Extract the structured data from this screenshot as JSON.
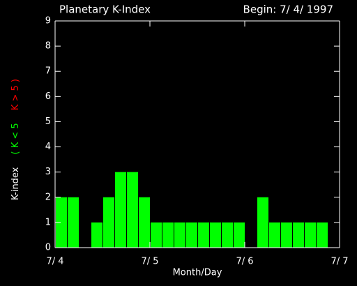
{
  "chart_data": {
    "type": "bar",
    "title": "Planetary K-Index",
    "subtitle": "Begin: 7/ 4/ 1997",
    "x_label": "Month/Day",
    "y_label": {
      "text": "K-index",
      "low": "( K < 5",
      "high": "K > 5 )",
      "low_color": "#00ff00",
      "high_color": "#ff0000"
    },
    "x": [
      0,
      3,
      6,
      9,
      12,
      15,
      18,
      21,
      24,
      27,
      30,
      33,
      36,
      39,
      42,
      45,
      48,
      51,
      54,
      57,
      60,
      63,
      66,
      69
    ],
    "bar_width": 3,
    "values": [
      2,
      2,
      null,
      1,
      2,
      3,
      3,
      2,
      1,
      1,
      1,
      1,
      1,
      1,
      1,
      1,
      null,
      2,
      1,
      1,
      1,
      1,
      1,
      null
    ],
    "color": "#00ff00",
    "xlim": [
      0,
      72
    ],
    "xticks": [
      {
        "value": 0,
        "label": "7/ 4"
      },
      {
        "value": 24,
        "label": "7/ 5"
      },
      {
        "value": 48,
        "label": "7/ 6"
      },
      {
        "value": 72,
        "label": "7/ 7"
      }
    ],
    "ylim": [
      0,
      9
    ],
    "yticks": [
      0,
      1,
      2,
      3,
      4,
      5,
      6,
      7,
      8,
      9
    ]
  }
}
